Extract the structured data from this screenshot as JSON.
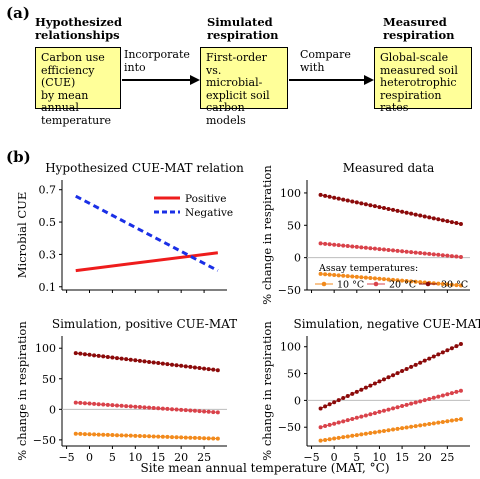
{
  "panel_a": {
    "label": "(a)",
    "stages": [
      {
        "heading": [
          "Hypothesized",
          "relationships"
        ],
        "box": [
          "Carbon use",
          "efficiency (CUE)",
          "by mean annual",
          "temperature"
        ]
      },
      {
        "heading": [
          "Simulated",
          "respiration"
        ],
        "box": [
          "First-order vs.",
          "microbial-",
          "explicit soil",
          "carbon models"
        ]
      },
      {
        "heading": [
          "Measured",
          "respiration"
        ],
        "box": [
          "Global-scale",
          "measured soil",
          "heterotrophic",
          "respiration rates"
        ]
      }
    ],
    "arrows": [
      {
        "label": [
          "Incorporate",
          "into"
        ]
      },
      {
        "label": [
          "Compare",
          "with"
        ]
      }
    ]
  },
  "panel_b": {
    "label": "(b)",
    "xlabel": "Site mean annual temperature (MAT, °C)",
    "xticks": [
      "−5",
      "0",
      "5",
      "10",
      "15",
      "20",
      "25"
    ]
  },
  "colors": {
    "positive": "#ee1c1c",
    "negative": "#1a2fe6",
    "t10": "#f28a1c",
    "t20": "#d9424a",
    "t30": "#8b0a0a",
    "box_fill": "#ffff99"
  },
  "chart_data": [
    {
      "type": "line",
      "title": "Hypothesized CUE-MAT relation",
      "xlabel": "",
      "ylabel": "Microbial CUE",
      "xlim": [
        -6,
        30
      ],
      "ylim": [
        0.08,
        0.76
      ],
      "yticks": [
        "0.1",
        "0.3",
        "0.5",
        "0.7"
      ],
      "legend": "top-right",
      "series": [
        {
          "name": "Positive",
          "style": "solid",
          "color_key": "positive",
          "x": [
            -3,
            28
          ],
          "y": [
            0.2,
            0.31
          ]
        },
        {
          "name": "Negative",
          "style": "dashed",
          "color_key": "negative",
          "x": [
            -3,
            28
          ],
          "y": [
            0.66,
            0.2
          ]
        }
      ]
    },
    {
      "type": "scatter",
      "title": "Measured data",
      "ylabel": "% change in respiration",
      "xlim": [
        -6,
        30
      ],
      "ylim": [
        -50,
        120
      ],
      "yticks": [
        "100",
        "50",
        "0",
        "−50"
      ],
      "legend_title": "Assay temperatures:",
      "legend": "bottom",
      "series": [
        {
          "name": "10 °C",
          "color_key": "t10",
          "x0": -3,
          "x1": 28,
          "y0": -25,
          "y1": -43
        },
        {
          "name": "20 °C",
          "color_key": "t20",
          "x0": -3,
          "x1": 28,
          "y0": 22,
          "y1": 1
        },
        {
          "name": "30 °C",
          "color_key": "t30",
          "x0": -3,
          "x1": 28,
          "y0": 97,
          "y1": 52
        }
      ]
    },
    {
      "type": "scatter",
      "title": "Simulation, positive CUE-MAT",
      "ylabel": "% change in respiration",
      "xlim": [
        -6,
        30
      ],
      "ylim": [
        -60,
        120
      ],
      "yticks": [
        "100",
        "50",
        "0",
        "−50"
      ],
      "series": [
        {
          "name": "10 °C",
          "color_key": "t10",
          "x0": -3,
          "x1": 28,
          "y0": -40,
          "y1": -48
        },
        {
          "name": "20 °C",
          "color_key": "t20",
          "x0": -3,
          "x1": 28,
          "y0": 11,
          "y1": -5
        },
        {
          "name": "30 °C",
          "color_key": "t30",
          "x0": -3,
          "x1": 28,
          "y0": 92,
          "y1": 64
        }
      ]
    },
    {
      "type": "scatter",
      "title": "Simulation, negative CUE-MAT",
      "ylabel": "% change in respiration",
      "xlim": [
        -6,
        30
      ],
      "ylim": [
        -85,
        120
      ],
      "yticks": [
        "100",
        "50",
        "0",
        "−50"
      ],
      "series": [
        {
          "name": "10 °C",
          "color_key": "t10",
          "x0": -3,
          "x1": 28,
          "y0": -75,
          "y1": -35
        },
        {
          "name": "20 °C",
          "color_key": "t20",
          "x0": -3,
          "x1": 28,
          "y0": -50,
          "y1": 18
        },
        {
          "name": "30 °C",
          "color_key": "t30",
          "x0": -3,
          "x1": 28,
          "y0": -15,
          "y1": 105
        }
      ]
    }
  ]
}
